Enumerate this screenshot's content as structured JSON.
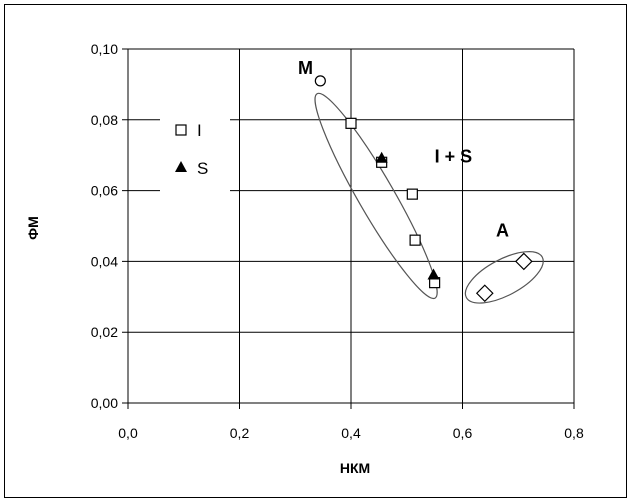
{
  "chart_data": {
    "type": "scatter",
    "xlabel": "НКМ",
    "ylabel": "ФМ",
    "xlim": [
      0,
      0.8
    ],
    "ylim": [
      0,
      0.1
    ],
    "x_ticks": [
      "0,0",
      "0,2",
      "0,4",
      "0,6",
      "0,8"
    ],
    "y_ticks": [
      "0,00",
      "0,02",
      "0,04",
      "0,06",
      "0,08",
      "0,10"
    ],
    "grid": true,
    "legend_position": "left",
    "series": [
      {
        "name": "I",
        "marker": "square",
        "points": [
          {
            "x": 0.4,
            "y": 0.079
          },
          {
            "x": 0.455,
            "y": 0.068
          },
          {
            "x": 0.51,
            "y": 0.059
          },
          {
            "x": 0.515,
            "y": 0.046
          },
          {
            "x": 0.55,
            "y": 0.034
          }
        ]
      },
      {
        "name": "S",
        "marker": "triangle",
        "points": [
          {
            "x": 0.455,
            "y": 0.069
          },
          {
            "x": 0.548,
            "y": 0.036
          }
        ]
      },
      {
        "name": "",
        "marker": "circle",
        "points": [
          {
            "x": 0.345,
            "y": 0.091
          }
        ]
      },
      {
        "name": "",
        "marker": "diamond",
        "points": [
          {
            "x": 0.64,
            "y": 0.031
          },
          {
            "x": 0.71,
            "y": 0.04
          }
        ]
      }
    ],
    "annotations": [
      {
        "text": "M",
        "x": 0.305,
        "y": 0.093
      },
      {
        "text": "I + S",
        "x": 0.55,
        "y": 0.068
      },
      {
        "text": "A",
        "x": 0.66,
        "y": 0.047
      }
    ]
  }
}
